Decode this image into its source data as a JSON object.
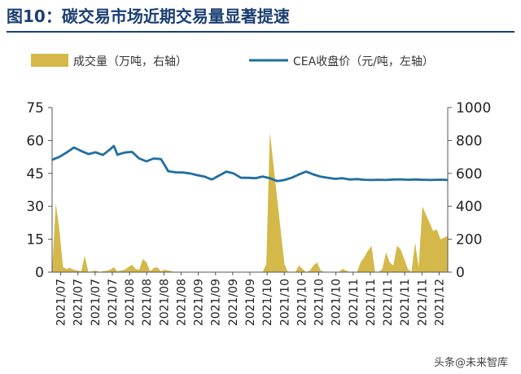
{
  "header": {
    "title": "图10：碳交易市场近期交易量显著提速"
  },
  "watermark": "头条@未来智库",
  "chart_data": {
    "type": "bar+line",
    "title": "图10：碳交易市场近期交易量显著提速",
    "legend": [
      {
        "name": "成交量（万吨，右轴）",
        "kind": "area",
        "color": "#d4b94a"
      },
      {
        "name": "CEA收盘价（元/吨，左轴）",
        "kind": "line",
        "color": "#1f6ea3"
      }
    ],
    "legend_position": "top",
    "grid": false,
    "left_axis": {
      "ylim": [
        0,
        75
      ],
      "ticks": [
        "0",
        "15",
        "30",
        "45",
        "60",
        "75"
      ]
    },
    "right_axis": {
      "ylim": [
        0,
        1000
      ],
      "ticks": [
        "0",
        "200",
        "400",
        "600",
        "800",
        "1000"
      ]
    },
    "x_tick_labels": [
      "2021/07",
      "2021/07",
      "2021/07",
      "2021/07",
      "2021/08",
      "2021/08",
      "2021/08",
      "2021/08",
      "2021/09",
      "2021/09",
      "2021/09",
      "2021/09",
      "2021/10",
      "2021/10",
      "2021/10",
      "2021/10",
      "2021/10",
      "2021/11",
      "2021/11",
      "2021/11",
      "2021/11",
      "2021/11",
      "2021/12"
    ],
    "x_range": [
      0,
      109
    ],
    "price_series": {
      "name": "CEA收盘价（元/吨，左轴）",
      "x": [
        0,
        2,
        4,
        6,
        8,
        10,
        12,
        14,
        16,
        17,
        18,
        20,
        22,
        24,
        26,
        28,
        30,
        32,
        34,
        36,
        38,
        40,
        42,
        44,
        46,
        48,
        50,
        52,
        54,
        56,
        58,
        60,
        62,
        64,
        66,
        68,
        70,
        72,
        74,
        76,
        78,
        80,
        82,
        84,
        86,
        88,
        90,
        92,
        94,
        96,
        98,
        100,
        102,
        104,
        106,
        108,
        109
      ],
      "values": [
        51.2,
        52.5,
        54.5,
        56.8,
        55.2,
        53.8,
        54.6,
        53.4,
        56,
        57.5,
        53.5,
        54.5,
        54.8,
        51.8,
        50.5,
        51.8,
        51.5,
        46,
        45.5,
        45.4,
        45,
        44.2,
        43.5,
        42.2,
        44,
        45.8,
        45,
        43,
        43,
        42.8,
        43.6,
        42.8,
        41.5,
        42,
        43,
        44.5,
        45.8,
        44.5,
        43.5,
        43,
        42.5,
        42.8,
        42.2,
        42.4,
        42.1,
        42,
        42.1,
        42,
        42.2,
        42.3,
        42.1,
        42.2,
        42.1,
        42,
        42.1,
        42.1,
        42
      ]
    },
    "volume_series": {
      "name": "成交量（万吨，右轴）",
      "x": [
        0,
        1,
        2,
        3,
        4,
        5,
        6,
        7,
        8,
        9,
        10,
        11,
        12,
        13,
        14,
        15,
        16,
        17,
        18,
        19,
        20,
        21,
        22,
        23,
        24,
        25,
        26,
        27,
        28,
        29,
        30,
        31,
        32,
        33,
        34,
        35,
        36,
        37,
        38,
        39,
        40,
        41,
        42,
        43,
        44,
        45,
        46,
        47,
        48,
        49,
        50,
        51,
        52,
        53,
        54,
        55,
        56,
        57,
        58,
        59,
        60,
        61,
        62,
        63,
        64,
        65,
        66,
        67,
        68,
        69,
        70,
        71,
        72,
        73,
        74,
        75,
        76,
        77,
        78,
        79,
        80,
        81,
        82,
        83,
        84,
        85,
        86,
        87,
        88,
        89,
        90,
        91,
        92,
        93,
        94,
        95,
        96,
        97,
        98,
        99,
        100,
        101,
        102,
        103,
        104,
        105,
        106,
        107,
        108,
        109
      ],
      "values": [
        0,
        420,
        260,
        30,
        20,
        25,
        15,
        10,
        5,
        100,
        0,
        5,
        10,
        0,
        5,
        8,
        15,
        30,
        5,
        10,
        15,
        30,
        45,
        20,
        15,
        80,
        60,
        5,
        25,
        30,
        5,
        15,
        10,
        5,
        0,
        0,
        0,
        0,
        0,
        0,
        0,
        0,
        0,
        0,
        0,
        0,
        0,
        0,
        0,
        0,
        0,
        0,
        0,
        0,
        0,
        0,
        0,
        0,
        0,
        50,
        850,
        650,
        450,
        250,
        50,
        0,
        0,
        0,
        40,
        20,
        0,
        10,
        40,
        60,
        10,
        0,
        0,
        0,
        0,
        0,
        20,
        10,
        0,
        0,
        0,
        60,
        90,
        130,
        160,
        0,
        0,
        20,
        120,
        60,
        40,
        160,
        140,
        80,
        20,
        0,
        180,
        30,
        400,
        350,
        300,
        250,
        260,
        200,
        210,
        220
      ]
    }
  }
}
